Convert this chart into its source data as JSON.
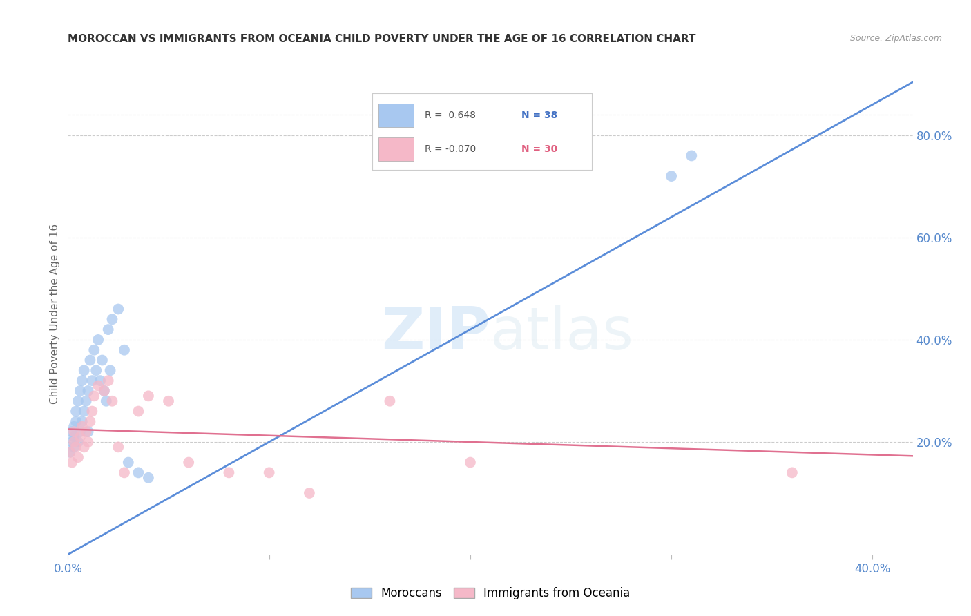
{
  "title": "MOROCCAN VS IMMIGRANTS FROM OCEANIA CHILD POVERTY UNDER THE AGE OF 16 CORRELATION CHART",
  "source": "Source: ZipAtlas.com",
  "ylabel": "Child Poverty Under the Age of 16",
  "xlim": [
    0.0,
    0.42
  ],
  "ylim": [
    -0.02,
    0.92
  ],
  "right_yticks": [
    0.2,
    0.4,
    0.6,
    0.8
  ],
  "right_ytick_labels": [
    "20.0%",
    "40.0%",
    "60.0%",
    "80.0%"
  ],
  "xtick_positions": [
    0.0,
    0.1,
    0.2,
    0.3,
    0.4
  ],
  "xtick_labels": [
    "0.0%",
    "",
    "",
    "",
    "40.0%"
  ],
  "watermark_zip": "ZIP",
  "watermark_atlas": "atlas",
  "moroccan_color": "#A8C8F0",
  "oceania_color": "#F5B8C8",
  "moroccan_line_color": "#5B8DD9",
  "oceania_line_color": "#E07090",
  "moroccan_x": [
    0.001,
    0.002,
    0.002,
    0.003,
    0.003,
    0.003,
    0.004,
    0.004,
    0.005,
    0.005,
    0.006,
    0.006,
    0.007,
    0.007,
    0.008,
    0.008,
    0.009,
    0.01,
    0.01,
    0.011,
    0.012,
    0.013,
    0.014,
    0.015,
    0.016,
    0.017,
    0.018,
    0.019,
    0.02,
    0.021,
    0.022,
    0.025,
    0.028,
    0.03,
    0.035,
    0.04,
    0.3,
    0.31
  ],
  "moroccan_y": [
    0.18,
    0.2,
    0.22,
    0.19,
    0.21,
    0.23,
    0.24,
    0.26,
    0.2,
    0.28,
    0.22,
    0.3,
    0.24,
    0.32,
    0.26,
    0.34,
    0.28,
    0.22,
    0.3,
    0.36,
    0.32,
    0.38,
    0.34,
    0.4,
    0.32,
    0.36,
    0.3,
    0.28,
    0.42,
    0.34,
    0.44,
    0.46,
    0.38,
    0.16,
    0.14,
    0.13,
    0.72,
    0.76
  ],
  "oceania_x": [
    0.001,
    0.002,
    0.003,
    0.003,
    0.004,
    0.005,
    0.006,
    0.007,
    0.008,
    0.009,
    0.01,
    0.011,
    0.012,
    0.013,
    0.015,
    0.018,
    0.02,
    0.022,
    0.025,
    0.028,
    0.035,
    0.04,
    0.05,
    0.06,
    0.08,
    0.1,
    0.12,
    0.16,
    0.2,
    0.36
  ],
  "oceania_y": [
    0.18,
    0.16,
    0.2,
    0.22,
    0.19,
    0.17,
    0.21,
    0.23,
    0.19,
    0.22,
    0.2,
    0.24,
    0.26,
    0.29,
    0.31,
    0.3,
    0.32,
    0.28,
    0.19,
    0.14,
    0.26,
    0.29,
    0.28,
    0.16,
    0.14,
    0.14,
    0.1,
    0.28,
    0.16,
    0.14
  ]
}
